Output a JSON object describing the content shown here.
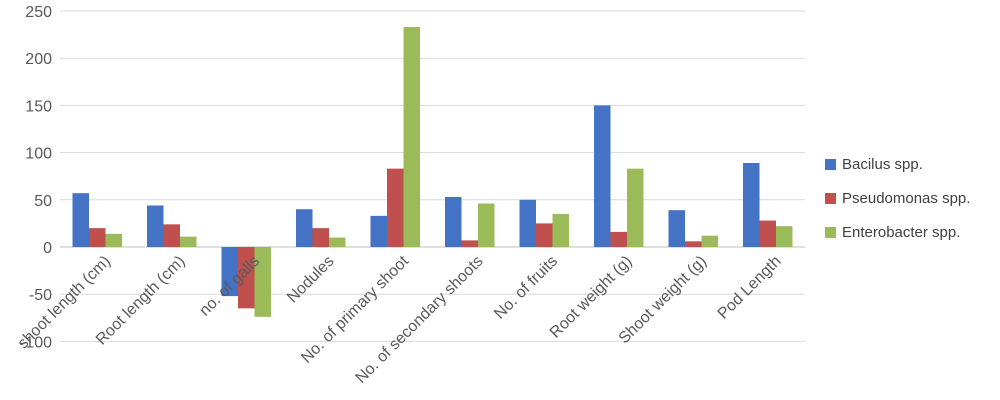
{
  "chart_data": {
    "type": "bar",
    "categories": [
      "shoot length (cm)",
      "Root length (cm)",
      "no. of galls",
      "Nodules",
      "No. of primary shoot",
      "No. of secondary shoots",
      "No. of fruits",
      "Root weight (g)",
      "Shoot weight (g)",
      "Pod Length"
    ],
    "series": [
      {
        "name": "Bacilus spp.",
        "color": "#4472C4",
        "values": [
          57,
          44,
          -52,
          40,
          33,
          53,
          50,
          150,
          39,
          89
        ]
      },
      {
        "name": "Pseudomonas spp.",
        "color": "#C0504D",
        "values": [
          20,
          24,
          -65,
          20,
          83,
          7,
          25,
          16,
          6,
          28
        ]
      },
      {
        "name": "Enterobacter spp.",
        "color": "#9BBB59",
        "values": [
          14,
          11,
          -74,
          10,
          233,
          46,
          35,
          83,
          12,
          22
        ]
      }
    ],
    "title": "",
    "xlabel": "",
    "ylabel": "",
    "ylim": [
      -100,
      250
    ],
    "yticks": [
      -100,
      -50,
      0,
      50,
      100,
      150,
      200,
      250
    ],
    "grid": true,
    "legend_position": "right"
  }
}
